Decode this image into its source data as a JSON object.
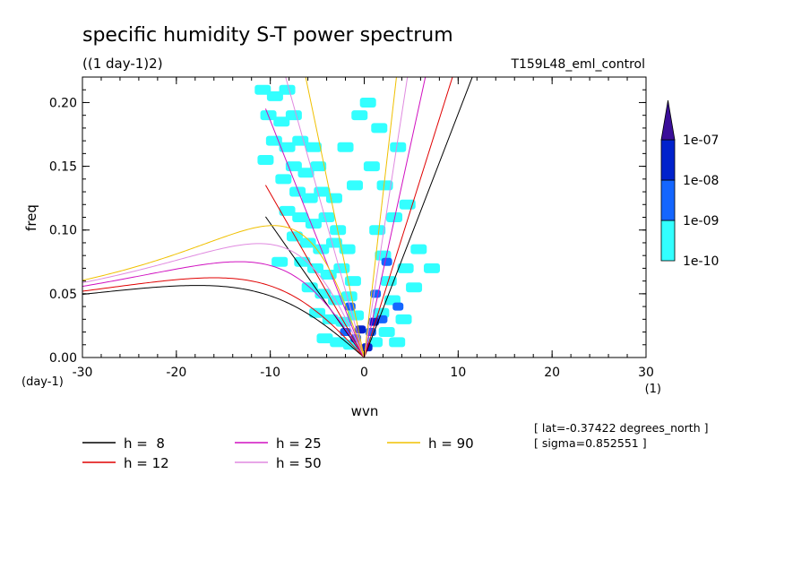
{
  "chart_data": {
    "type": "heatmap",
    "title": "specific humidity S-T power spectrum",
    "subtitle": "((1 day-1)2)",
    "run_label": "T159L48_eml_control",
    "xlabel": "wvn",
    "ylabel": "freq",
    "x_unit": "(1)",
    "y_unit": "(day-1)",
    "xlim": [
      -30,
      30
    ],
    "ylim": [
      0,
      0.22
    ],
    "x_ticks": [
      -30,
      -20,
      -10,
      0,
      10,
      20,
      30
    ],
    "x_tick_labels": [
      "-30",
      "-20",
      "-10",
      "0",
      "10",
      "20",
      "30"
    ],
    "y_ticks": [
      0,
      0.05,
      0.1,
      0.15,
      0.2
    ],
    "y_tick_labels": [
      "0.00",
      "0.05",
      "0.10",
      "0.15",
      "0.20"
    ],
    "colorbar": {
      "levels": [
        "1e-10",
        "1e-09",
        "1e-08",
        "1e-07"
      ],
      "colors": [
        "#33ffff",
        "#1466ff",
        "#0022cc",
        "#3a0e99"
      ]
    },
    "info_lines": [
      "[ lat=-0.37422 degrees_north ]",
      "[ sigma=0.852551 ]"
    ],
    "dispersion_curves": [
      {
        "name": "h =  8",
        "h": 8,
        "color": "#000000"
      },
      {
        "name": "h = 12",
        "h": 12,
        "color": "#e00000"
      },
      {
        "name": "h = 25",
        "h": 25,
        "color": "#d010c0"
      },
      {
        "name": "h = 50",
        "h": 50,
        "color": "#e08ae0"
      },
      {
        "name": "h = 90",
        "h": 90,
        "color": "#f0c000"
      }
    ],
    "spectrum_cells": [
      {
        "k": -10.8,
        "f": 0.21,
        "level": 1
      },
      {
        "k": -9.5,
        "f": 0.205,
        "level": 1
      },
      {
        "k": -8.2,
        "f": 0.21,
        "level": 1
      },
      {
        "k": -10.2,
        "f": 0.19,
        "level": 1
      },
      {
        "k": -8.8,
        "f": 0.185,
        "level": 1
      },
      {
        "k": -7.5,
        "f": 0.19,
        "level": 1
      },
      {
        "k": -9.6,
        "f": 0.17,
        "level": 1
      },
      {
        "k": -8.2,
        "f": 0.165,
        "level": 1
      },
      {
        "k": -6.8,
        "f": 0.17,
        "level": 1
      },
      {
        "k": -5.4,
        "f": 0.165,
        "level": 1
      },
      {
        "k": -7.5,
        "f": 0.15,
        "level": 1
      },
      {
        "k": -6.2,
        "f": 0.145,
        "level": 1
      },
      {
        "k": -4.9,
        "f": 0.15,
        "level": 1
      },
      {
        "k": -8.6,
        "f": 0.14,
        "level": 1
      },
      {
        "k": -7.1,
        "f": 0.13,
        "level": 1
      },
      {
        "k": -5.8,
        "f": 0.125,
        "level": 1
      },
      {
        "k": -4.5,
        "f": 0.13,
        "level": 1
      },
      {
        "k": -3.2,
        "f": 0.125,
        "level": 1
      },
      {
        "k": -8.2,
        "f": 0.115,
        "level": 1
      },
      {
        "k": -6.8,
        "f": 0.11,
        "level": 1
      },
      {
        "k": -5.4,
        "f": 0.105,
        "level": 1
      },
      {
        "k": -4.0,
        "f": 0.11,
        "level": 1
      },
      {
        "k": -2.8,
        "f": 0.1,
        "level": 1
      },
      {
        "k": -7.4,
        "f": 0.095,
        "level": 1
      },
      {
        "k": -6.0,
        "f": 0.09,
        "level": 1
      },
      {
        "k": -4.6,
        "f": 0.085,
        "level": 1
      },
      {
        "k": -3.2,
        "f": 0.09,
        "level": 1
      },
      {
        "k": -1.8,
        "f": 0.085,
        "level": 1
      },
      {
        "k": -6.6,
        "f": 0.075,
        "level": 1
      },
      {
        "k": -5.2,
        "f": 0.07,
        "level": 1
      },
      {
        "k": -3.8,
        "f": 0.065,
        "level": 1
      },
      {
        "k": -2.4,
        "f": 0.07,
        "level": 1
      },
      {
        "k": -1.2,
        "f": 0.06,
        "level": 1
      },
      {
        "k": -5.8,
        "f": 0.055,
        "level": 1
      },
      {
        "k": -4.4,
        "f": 0.05,
        "level": 1
      },
      {
        "k": -3.0,
        "f": 0.045,
        "level": 1
      },
      {
        "k": -1.6,
        "f": 0.048,
        "level": 1
      },
      {
        "k": -5.0,
        "f": 0.035,
        "level": 1
      },
      {
        "k": -3.6,
        "f": 0.03,
        "level": 1
      },
      {
        "k": -2.2,
        "f": 0.028,
        "level": 1
      },
      {
        "k": -0.9,
        "f": 0.033,
        "level": 1
      },
      {
        "k": -4.2,
        "f": 0.015,
        "level": 1
      },
      {
        "k": -2.8,
        "f": 0.012,
        "level": 1
      },
      {
        "k": -1.4,
        "f": 0.01,
        "level": 1
      },
      {
        "k": 1.1,
        "f": 0.012,
        "level": 1
      },
      {
        "k": 2.4,
        "f": 0.02,
        "level": 1
      },
      {
        "k": 3.5,
        "f": 0.012,
        "level": 1
      },
      {
        "k": 1.8,
        "f": 0.035,
        "level": 1
      },
      {
        "k": 3.0,
        "f": 0.045,
        "level": 1
      },
      {
        "k": 4.2,
        "f": 0.03,
        "level": 1
      },
      {
        "k": 5.3,
        "f": 0.055,
        "level": 1
      },
      {
        "k": 2.6,
        "f": 0.06,
        "level": 1
      },
      {
        "k": 4.4,
        "f": 0.07,
        "level": 1
      },
      {
        "k": 5.8,
        "f": 0.085,
        "level": 1
      },
      {
        "k": 2.0,
        "f": 0.08,
        "level": 1
      },
      {
        "k": 1.4,
        "f": 0.1,
        "level": 1
      },
      {
        "k": 3.2,
        "f": 0.11,
        "level": 1
      },
      {
        "k": 4.6,
        "f": 0.12,
        "level": 1
      },
      {
        "k": 2.2,
        "f": 0.135,
        "level": 1
      },
      {
        "k": 0.8,
        "f": 0.15,
        "level": 1
      },
      {
        "k": 3.6,
        "f": 0.165,
        "level": 1
      },
      {
        "k": 1.6,
        "f": 0.18,
        "level": 1
      },
      {
        "k": 0.4,
        "f": 0.2,
        "level": 1
      },
      {
        "k": 7.2,
        "f": 0.07,
        "level": 1
      },
      {
        "k": -0.5,
        "f": 0.19,
        "level": 1
      },
      {
        "k": -2.0,
        "f": 0.165,
        "level": 1
      },
      {
        "k": -1.0,
        "f": 0.135,
        "level": 1
      },
      {
        "k": -9.0,
        "f": 0.075,
        "level": 1
      },
      {
        "k": -10.5,
        "f": 0.155,
        "level": 1
      },
      {
        "k": -2.0,
        "f": 0.02,
        "level": 2
      },
      {
        "k": -0.9,
        "f": 0.015,
        "level": 2
      },
      {
        "k": 0.7,
        "f": 0.02,
        "level": 2
      },
      {
        "k": 1.9,
        "f": 0.03,
        "level": 2
      },
      {
        "k": 1.2,
        "f": 0.05,
        "level": 2
      },
      {
        "k": 2.4,
        "f": 0.075,
        "level": 2
      },
      {
        "k": -1.5,
        "f": 0.04,
        "level": 2
      },
      {
        "k": 3.6,
        "f": 0.04,
        "level": 2
      },
      {
        "k": -0.4,
        "f": 0.022,
        "level": 3
      },
      {
        "k": 1.0,
        "f": 0.028,
        "level": 3
      },
      {
        "k": 0.3,
        "f": 0.008,
        "level": 3
      }
    ]
  }
}
